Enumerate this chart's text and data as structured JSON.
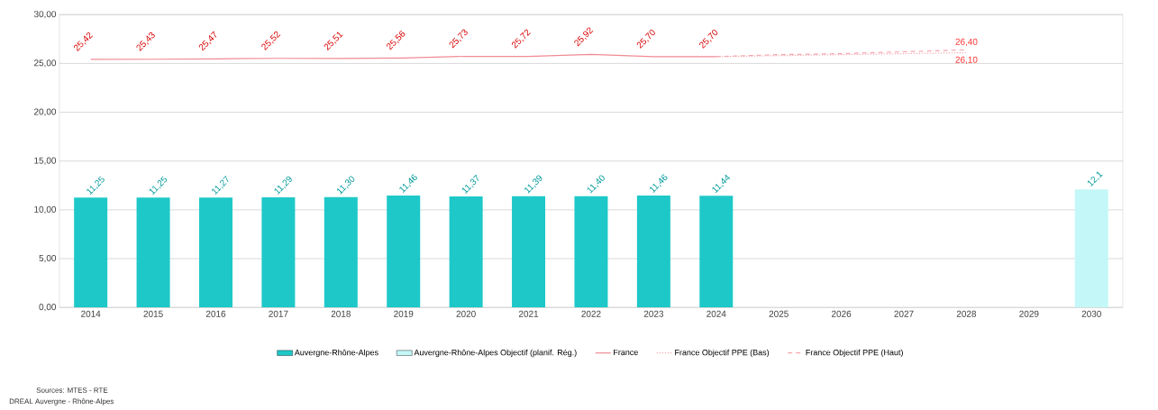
{
  "chart_data": {
    "type": "bar",
    "categories": [
      "2014",
      "2015",
      "2016",
      "2017",
      "2018",
      "2019",
      "2020",
      "2021",
      "2022",
      "2023",
      "2024",
      "2025",
      "2026",
      "2027",
      "2028",
      "2029",
      "2030"
    ],
    "series": [
      {
        "name": "Auvergne-Rhône-Alpes",
        "color": "#1ec8c8",
        "values": [
          11.25,
          11.25,
          11.27,
          11.29,
          11.3,
          11.46,
          11.37,
          11.39,
          11.4,
          11.46,
          11.44,
          null,
          null,
          null,
          null,
          null,
          null
        ],
        "value_labels": [
          "11,25",
          "11,25",
          "11,27",
          "11,29",
          "11,30",
          "11,46",
          "11,37",
          "11,39",
          "11,40",
          "11,46",
          "11,44",
          null,
          null,
          null,
          null,
          null,
          null
        ]
      },
      {
        "name": "Auvergne-Rhône-Alpes Objectif (planif. Rég.)",
        "color": "#c4f7f7",
        "values": [
          null,
          null,
          null,
          null,
          null,
          null,
          null,
          null,
          null,
          null,
          null,
          null,
          null,
          null,
          null,
          null,
          12.1
        ],
        "value_labels": [
          null,
          null,
          null,
          null,
          null,
          null,
          null,
          null,
          null,
          null,
          null,
          null,
          null,
          null,
          null,
          null,
          "12,1"
        ]
      },
      {
        "name": "France",
        "type": "line",
        "line_style": "solid",
        "color": "#f08a94",
        "values": [
          25.42,
          25.43,
          25.47,
          25.52,
          25.51,
          25.56,
          25.73,
          25.72,
          25.92,
          25.7,
          25.7,
          null,
          null,
          null,
          null,
          null,
          null
        ],
        "value_labels": [
          "25,42",
          "25,43",
          "25,47",
          "25,52",
          "25,51",
          "25,56",
          "25,73",
          "25,72",
          "25,92",
          "25,70",
          "25,70",
          null,
          null,
          null,
          null,
          null,
          null
        ]
      },
      {
        "name": "France Objectif PPE (Bas)",
        "type": "line",
        "line_style": "dotted",
        "color": "#f4a6ae",
        "values": [
          null,
          null,
          null,
          null,
          null,
          null,
          null,
          null,
          null,
          null,
          25.7,
          25.8,
          25.9,
          26.0,
          26.1,
          null,
          null
        ],
        "value_labels": [
          null,
          null,
          null,
          null,
          null,
          null,
          null,
          null,
          null,
          null,
          null,
          null,
          null,
          null,
          "26,10",
          null,
          null
        ]
      },
      {
        "name": "France Objectif PPE (Haut)",
        "type": "line",
        "line_style": "dashed",
        "color": "#f4a6ae",
        "values": [
          null,
          null,
          null,
          null,
          null,
          null,
          null,
          null,
          null,
          null,
          25.7,
          25.9,
          26.0,
          26.2,
          26.4,
          null,
          null
        ],
        "value_labels": [
          null,
          null,
          null,
          null,
          null,
          null,
          null,
          null,
          null,
          null,
          null,
          null,
          null,
          null,
          "26,40",
          null,
          null
        ]
      }
    ],
    "ylim": [
      0,
      30
    ],
    "yticks": [
      {
        "value": 0,
        "label": "0,00"
      },
      {
        "value": 5,
        "label": "5,00"
      },
      {
        "value": 10,
        "label": "10,00"
      },
      {
        "value": 15,
        "label": "15,00"
      },
      {
        "value": 20,
        "label": "20,00"
      },
      {
        "value": 25,
        "label": "25,00"
      },
      {
        "value": 30,
        "label": "30,00"
      }
    ],
    "grid": "y",
    "legend": "bottom",
    "marker": "none",
    "annotations": [
      "Sources: MTES - RTE",
      "DREAL Auvergne - Rhône-Alpes"
    ]
  }
}
